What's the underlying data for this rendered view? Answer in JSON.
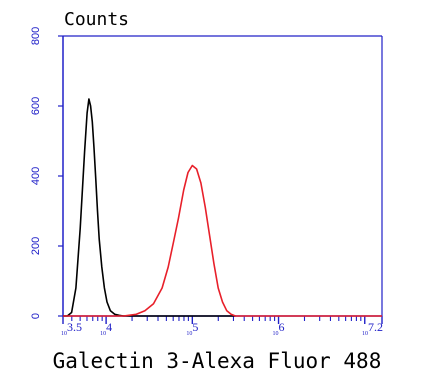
{
  "chart_data": {
    "type": "line",
    "ylabel": "Counts",
    "xlabel": "Galectin 3-Alexa Fluor 488",
    "x_scale": "log10",
    "xlim": [
      3.5,
      7.2
    ],
    "ylim": [
      0,
      800
    ],
    "yticks": [
      0,
      200,
      400,
      600,
      800
    ],
    "xtick_labels": [
      {
        "pos": 3.5,
        "base": "10",
        "exp": "3.5"
      },
      {
        "pos": 4,
        "base": "10",
        "exp": "4"
      },
      {
        "pos": 5,
        "base": "10",
        "exp": "5"
      },
      {
        "pos": 6,
        "base": "10",
        "exp": "6"
      },
      {
        "pos": 7.2,
        "base": "10",
        "exp": "7.2"
      }
    ],
    "series": [
      {
        "color": "#000000",
        "x": [
          3.5,
          3.55,
          3.6,
          3.65,
          3.7,
          3.75,
          3.78,
          3.8,
          3.82,
          3.84,
          3.86,
          3.88,
          3.9,
          3.92,
          3.95,
          3.98,
          4.01,
          4.05,
          4.1,
          4.15,
          4.2,
          4.3,
          4.5,
          5.0,
          5.5
        ],
        "y": [
          0,
          0,
          10,
          80,
          250,
          470,
          580,
          620,
          600,
          555,
          480,
          390,
          300,
          220,
          140,
          80,
          40,
          15,
          5,
          2,
          0,
          0,
          0,
          0,
          0
        ]
      },
      {
        "color": "#e8202a",
        "x": [
          3.5,
          4.2,
          4.35,
          4.45,
          4.55,
          4.65,
          4.72,
          4.78,
          4.84,
          4.9,
          4.95,
          5.0,
          5.05,
          5.1,
          5.15,
          5.2,
          5.25,
          5.3,
          5.35,
          5.4,
          5.45,
          5.5,
          6.0,
          7.2
        ],
        "y": [
          0,
          0,
          5,
          15,
          35,
          80,
          140,
          210,
          280,
          360,
          410,
          430,
          420,
          380,
          310,
          230,
          150,
          80,
          40,
          15,
          5,
          0,
          0,
          0
        ]
      }
    ]
  }
}
